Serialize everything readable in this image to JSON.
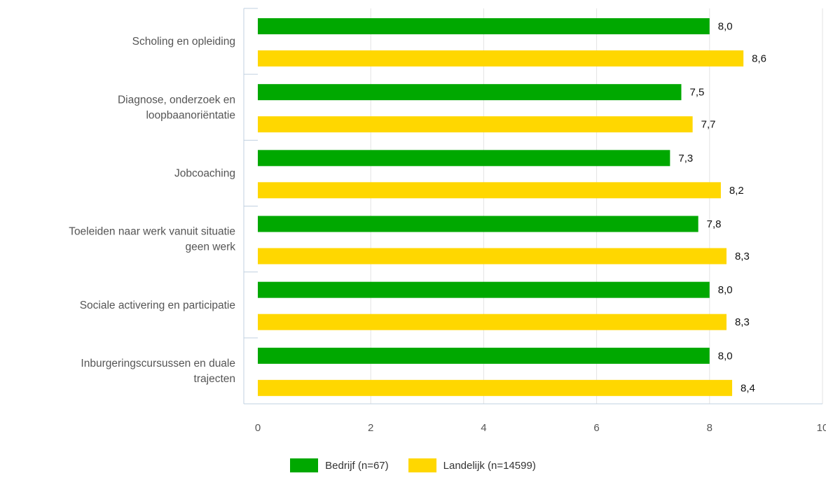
{
  "chart_data": {
    "type": "bar",
    "orientation": "horizontal",
    "categories": [
      [
        "Scholing en opleiding"
      ],
      [
        "Diagnose, onderzoek en",
        "loopbaanoriëntatie"
      ],
      [
        "Jobcoaching"
      ],
      [
        "Toeleiden naar werk vanuit situatie",
        "geen werk"
      ],
      [
        "Sociale activering en participatie"
      ],
      [
        "Inburgeringscursussen en duale",
        "trajecten"
      ]
    ],
    "series": [
      {
        "name": "Bedrijf (n=67)",
        "color": "#00a800",
        "values": [
          8.0,
          7.5,
          7.3,
          7.8,
          8.0,
          8.0
        ],
        "labels": [
          "8,0",
          "7,5",
          "7,3",
          "7,8",
          "8,0",
          "8,0"
        ]
      },
      {
        "name": "Landelijk (n=14599)",
        "color": "#ffd700",
        "values": [
          8.6,
          7.7,
          8.2,
          8.3,
          8.3,
          8.4
        ],
        "labels": [
          "8,6",
          "7,7",
          "8,2",
          "8,3",
          "8,3",
          "8,4"
        ]
      }
    ],
    "xlim": [
      0,
      10
    ],
    "xticks": [
      0,
      2,
      4,
      6,
      8,
      10
    ],
    "grid": true,
    "legend_position": "bottom-center"
  }
}
